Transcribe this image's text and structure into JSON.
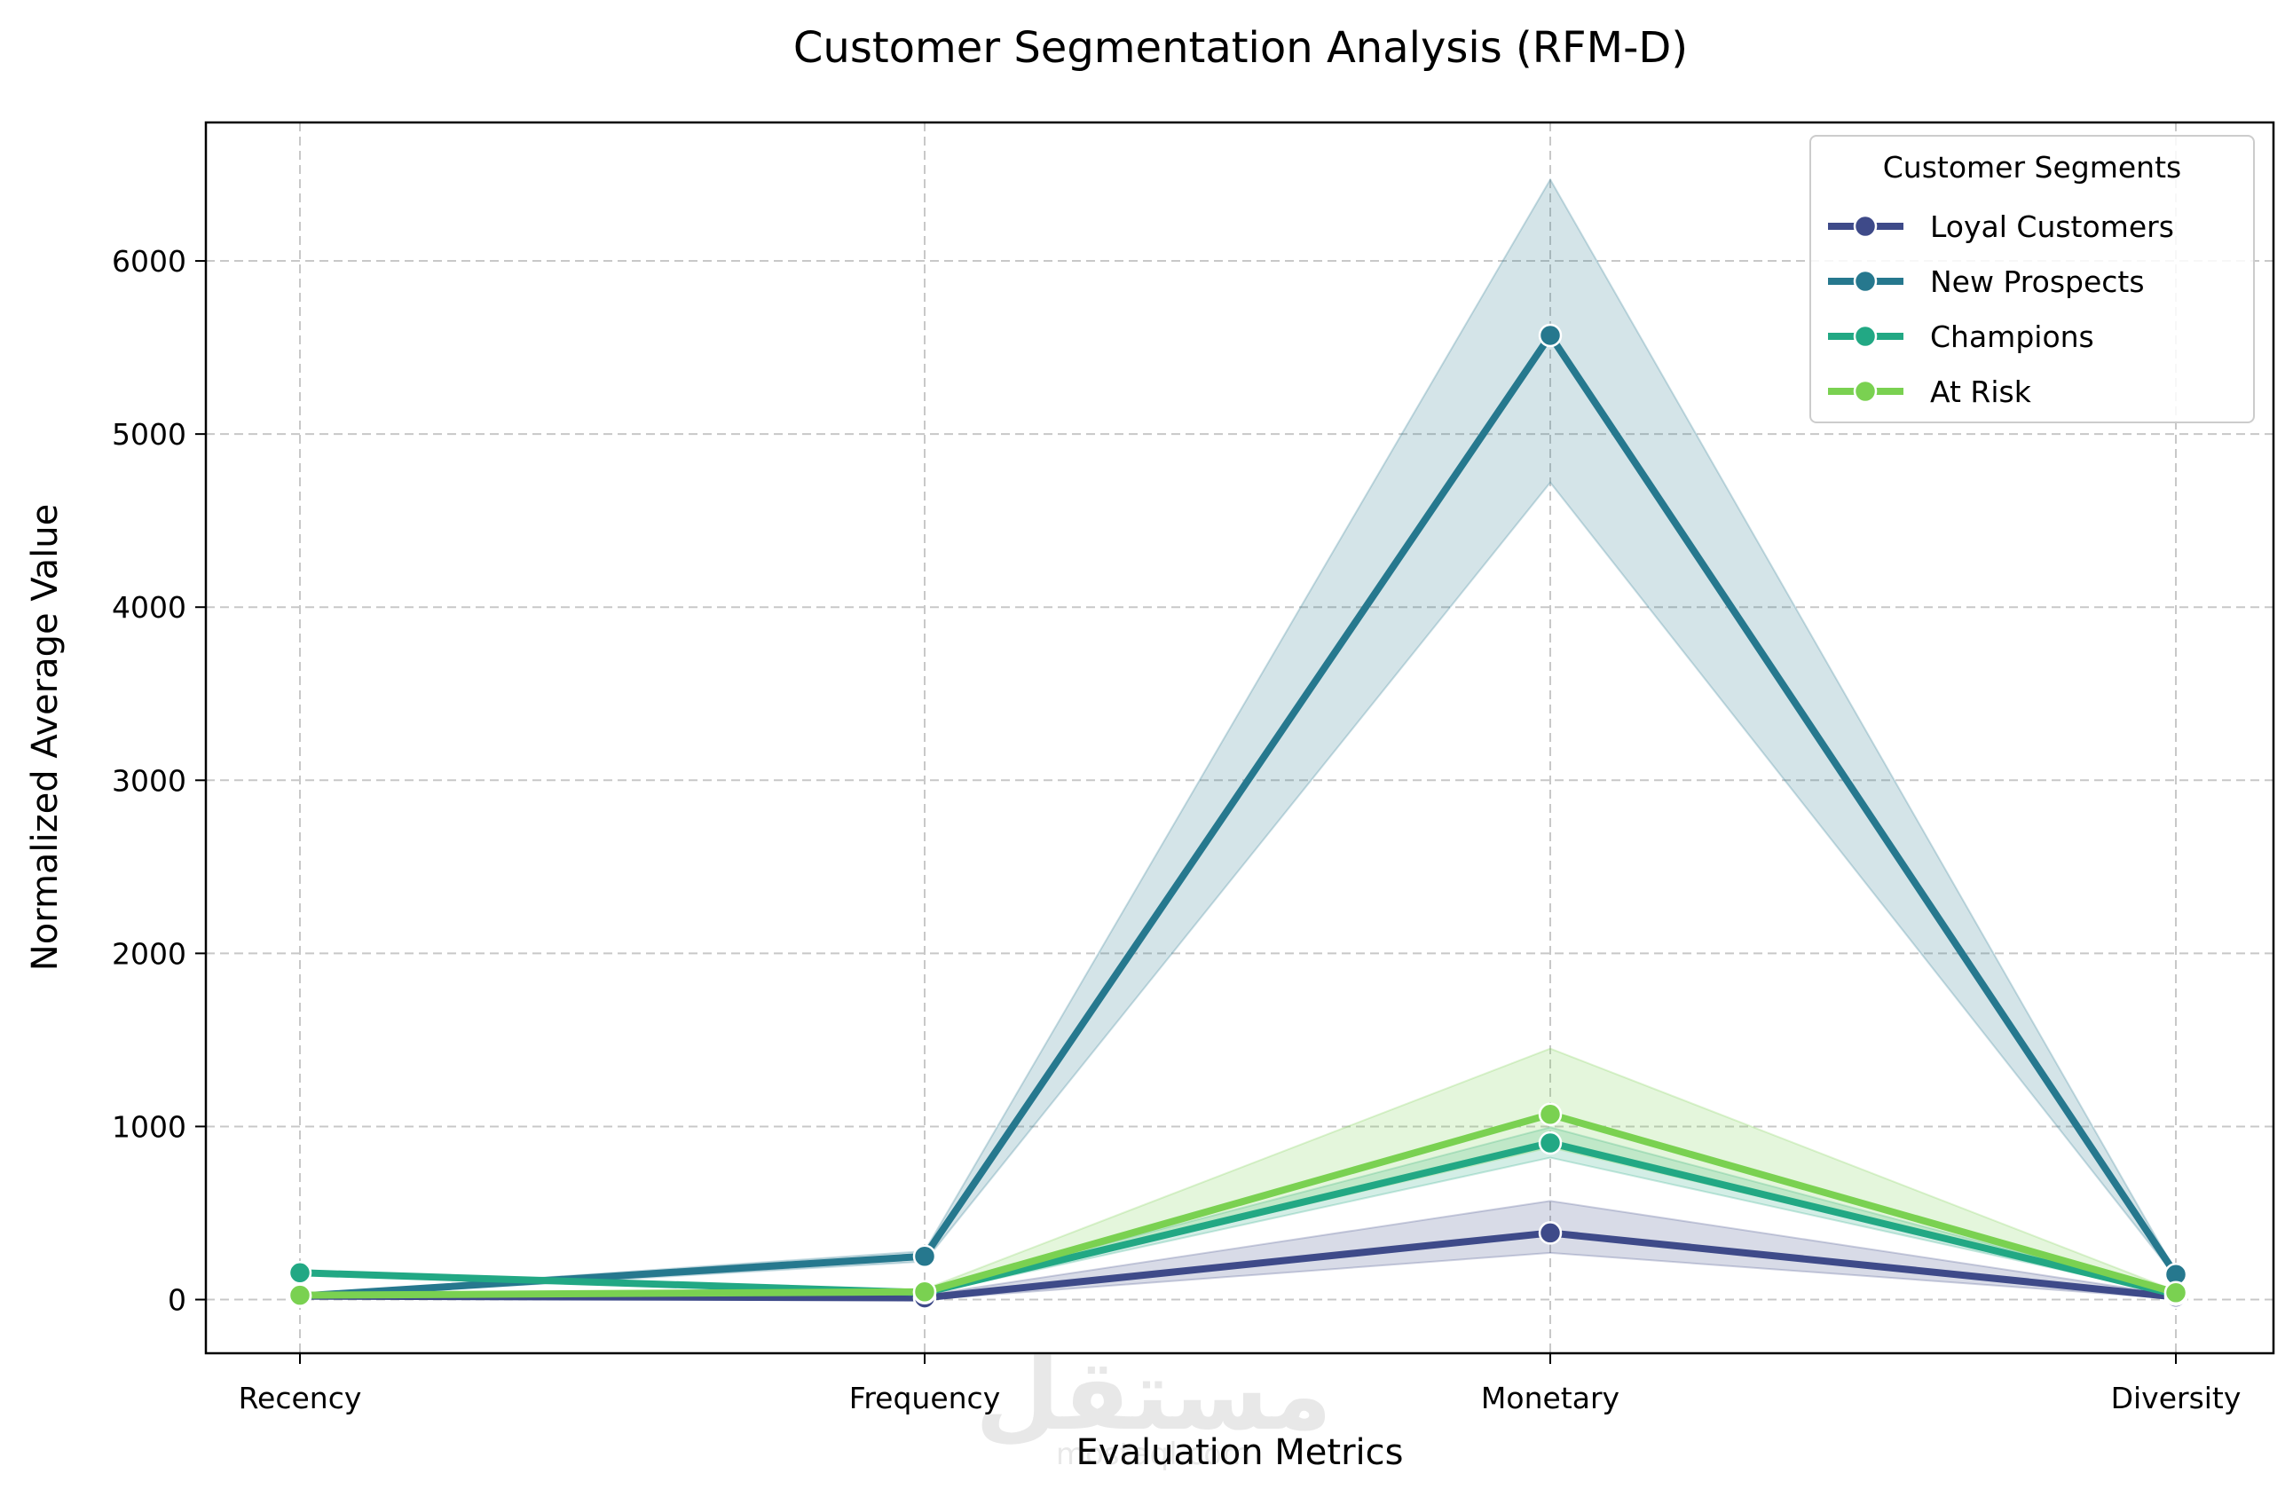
{
  "chart_data": {
    "type": "line",
    "title": "Customer Segmentation Analysis (RFM-D)",
    "xlabel": "Evaluation Metrics",
    "ylabel": "Normalized Average Value",
    "categories": [
      "Recency",
      "Frequency",
      "Monetary",
      "Diversity"
    ],
    "ylim": [
      -310,
      6800
    ],
    "yticks": [
      0,
      1000,
      2000,
      3000,
      4000,
      5000,
      6000
    ],
    "grid": true,
    "legend": {
      "title": "Customer Segments",
      "placement": "top-right"
    },
    "series": [
      {
        "name": "Loyal Customers",
        "color": "#3e4a89",
        "values": [
          20,
          10,
          385,
          15
        ],
        "lower": [
          10,
          0,
          270,
          5
        ],
        "upper": [
          30,
          25,
          570,
          25
        ]
      },
      {
        "name": "New Prospects",
        "color": "#26788e",
        "values": [
          20,
          250,
          5570,
          145
        ],
        "lower": [
          10,
          220,
          4720,
          130
        ],
        "upper": [
          30,
          280,
          6470,
          160
        ]
      },
      {
        "name": "Champions",
        "color": "#22a884",
        "values": [
          155,
          40,
          905,
          30
        ],
        "lower": [
          145,
          30,
          820,
          25
        ],
        "upper": [
          165,
          50,
          995,
          35
        ]
      },
      {
        "name": "At Risk",
        "color": "#7ad151",
        "values": [
          25,
          45,
          1070,
          40
        ],
        "lower": [
          15,
          35,
          880,
          30
        ],
        "upper": [
          35,
          60,
          1450,
          50
        ]
      }
    ]
  },
  "watermark": {
    "text": "مستقل",
    "subtext": "mostaql.com"
  }
}
